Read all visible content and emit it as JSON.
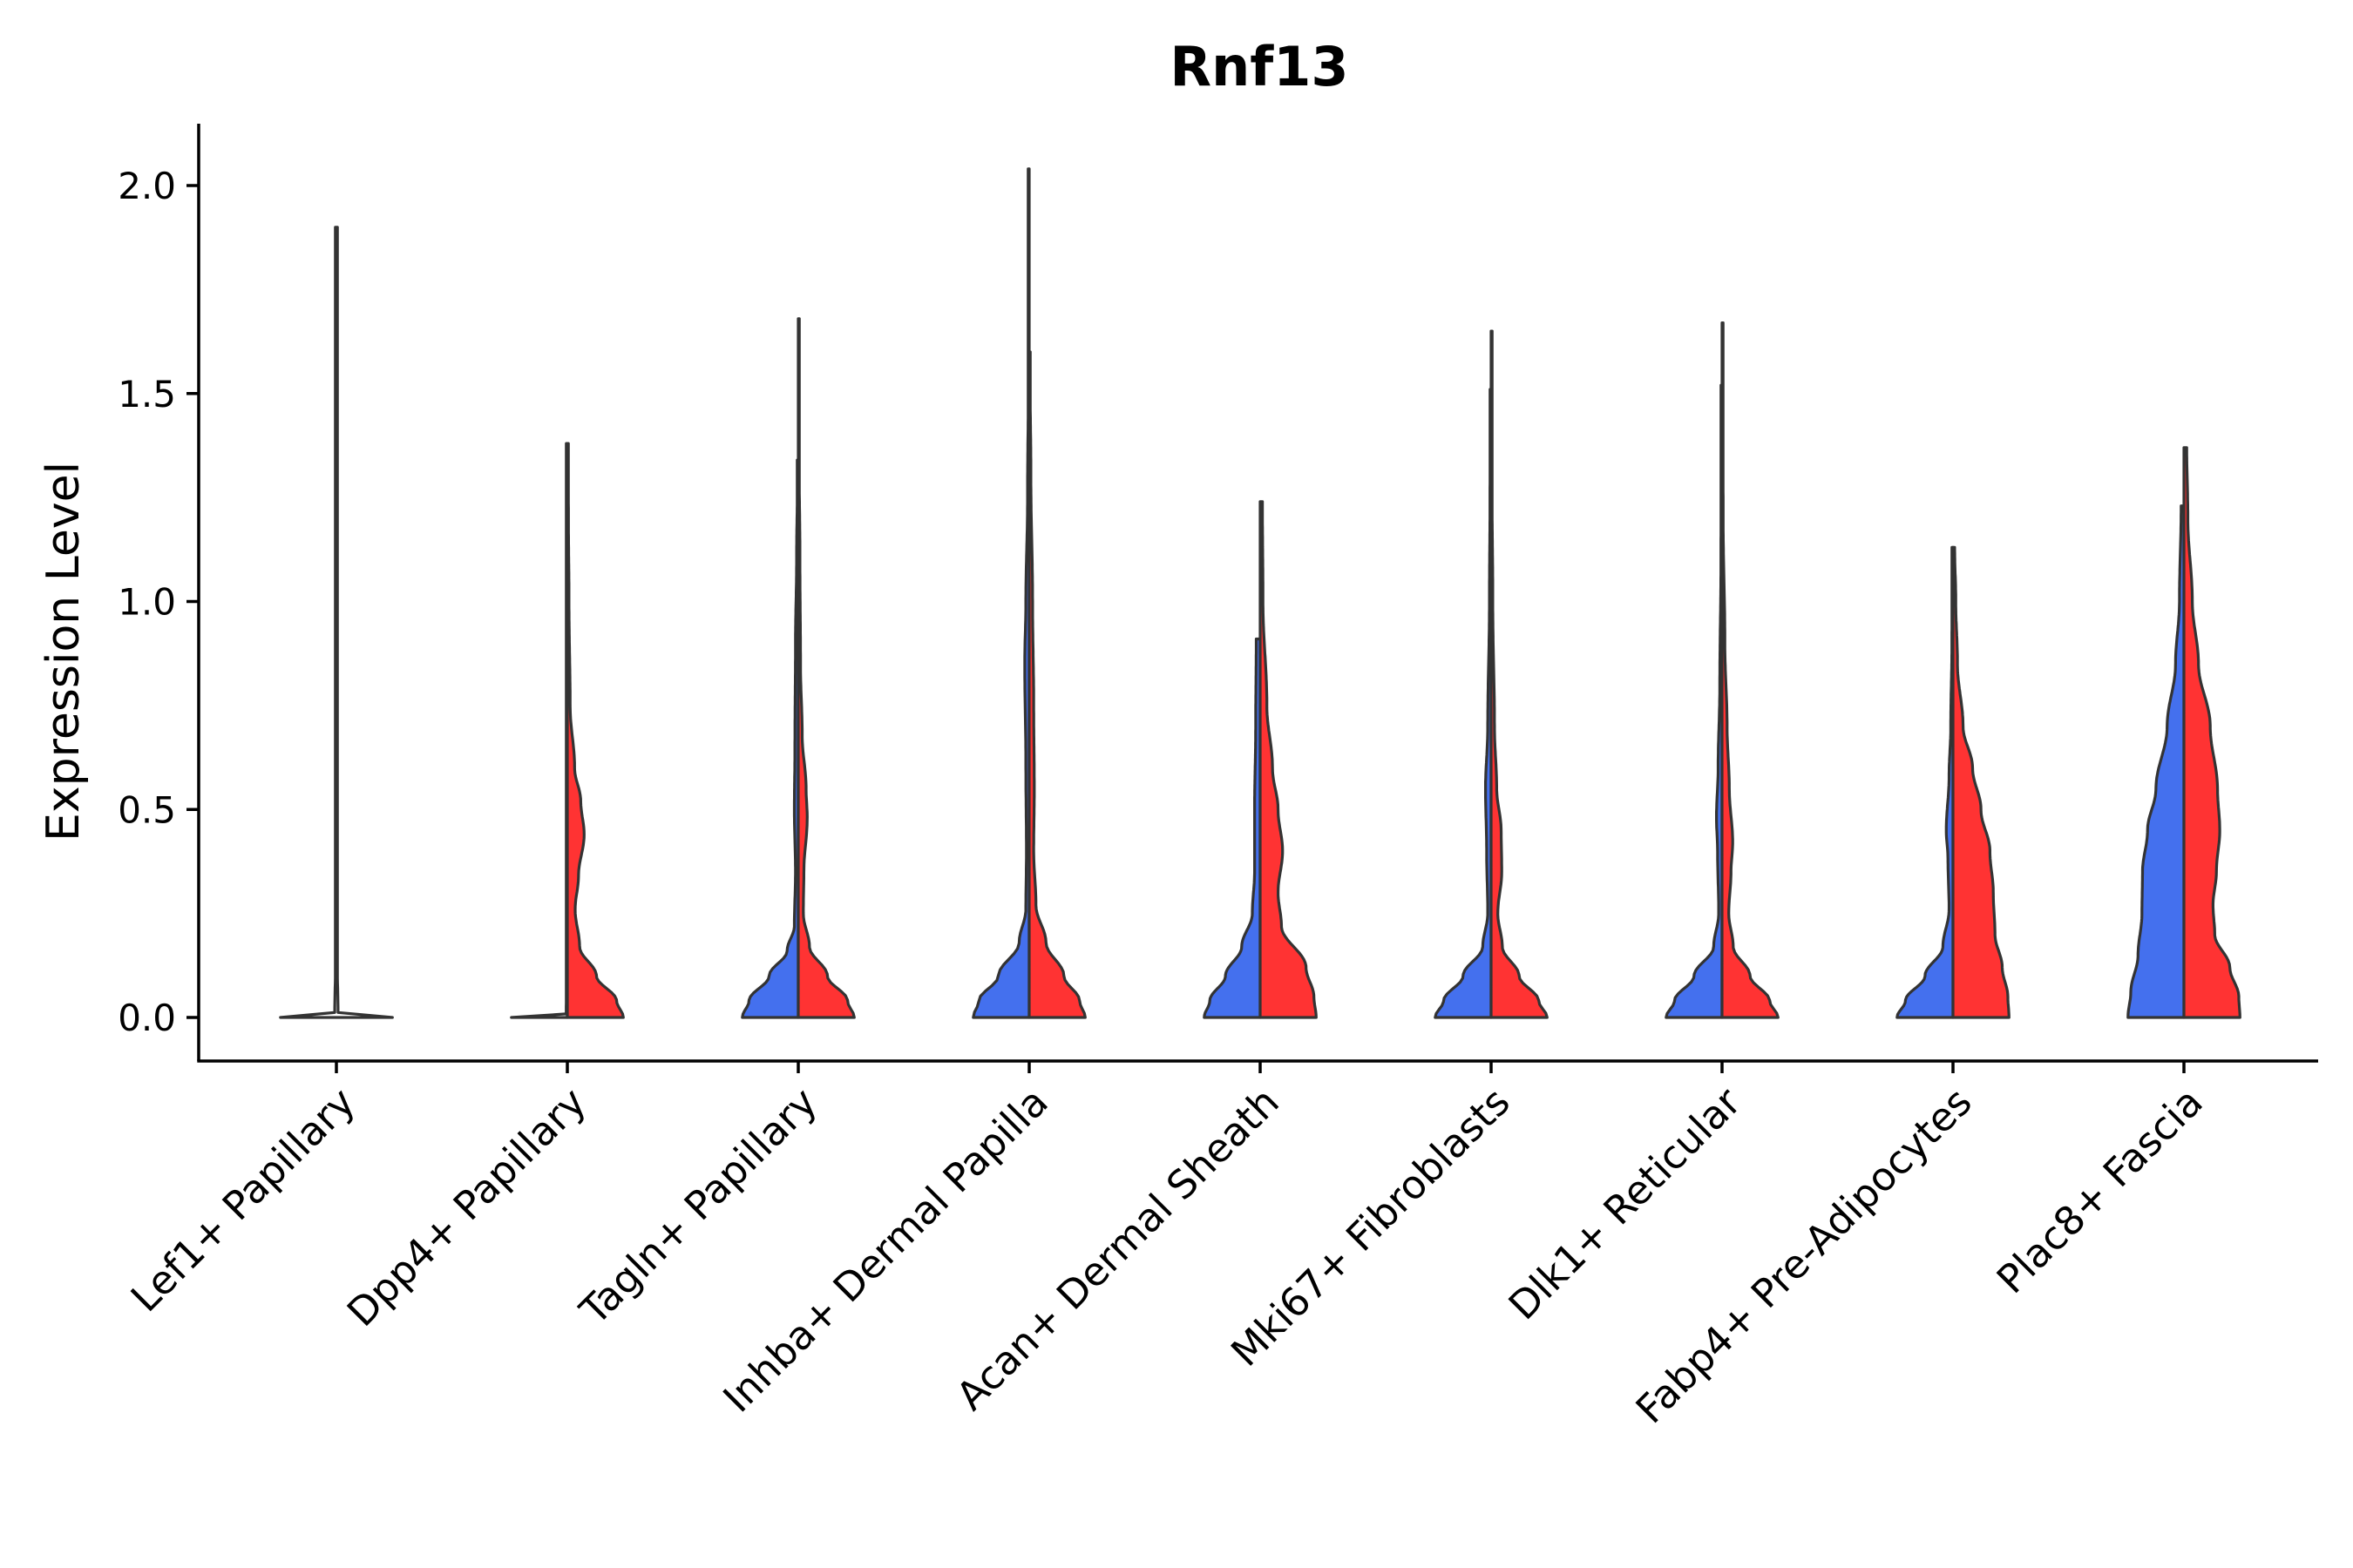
{
  "chart_data": {
    "type": "violin",
    "title": "Rnf13",
    "xlabel": "",
    "ylabel": "Expression Level",
    "ylim": [
      -0.1,
      2.15
    ],
    "yticks": [
      "0.0",
      "0.5",
      "1.0",
      "1.5",
      "2.0"
    ],
    "grid": false,
    "colors": {
      "blue": "#4470ee",
      "red": "#ff3333",
      "neutral": "#ffffff",
      "outline": "#333333"
    },
    "categories": [
      "Lef1+ Papillary",
      "Dpp4+ Papillary",
      "Tagln+ Papillary",
      "Inhba+ Dermal Papilla",
      "Acan+ Dermal Sheath",
      "Mki67+ Fibroblasts",
      "Dlk1+ Reticular",
      "Fabp4+ Pre-Adipocytes",
      "Plac8+ Fascia"
    ],
    "violins": [
      {
        "category": 0,
        "side": "single",
        "color": "neutral",
        "max": 1.9,
        "halfwidth": 0.46,
        "profile": [
          [
            0,
            1
          ],
          [
            0.003,
            0.4
          ],
          [
            0.006,
            0.03
          ],
          [
            0.2,
            0.003
          ],
          [
            1.9,
            0.003
          ]
        ]
      },
      {
        "category": 1,
        "side": "left",
        "color": "neutral",
        "max": 1.38,
        "halfwidth": 0.46,
        "profile": [
          [
            0,
            1
          ],
          [
            0.003,
            0.3
          ],
          [
            0.006,
            0.02
          ],
          [
            0.2,
            0.003
          ],
          [
            1.38,
            0.003
          ]
        ]
      },
      {
        "category": 1,
        "side": "right",
        "color": "red",
        "max": 1.38,
        "halfwidth": 0.46,
        "profile": [
          [
            0,
            1
          ],
          [
            0.04,
            0.88
          ],
          [
            0.1,
            0.52
          ],
          [
            0.17,
            0.22
          ],
          [
            0.26,
            0.14
          ],
          [
            0.34,
            0.2
          ],
          [
            0.44,
            0.3
          ],
          [
            0.52,
            0.24
          ],
          [
            0.6,
            0.13
          ],
          [
            0.75,
            0.05
          ],
          [
            1.0,
            0.03
          ],
          [
            1.2,
            0.02
          ],
          [
            1.38,
            0.01
          ]
        ]
      },
      {
        "category": 2,
        "side": "left",
        "color": "blue",
        "max": 1.34,
        "halfwidth": 0.46,
        "profile": [
          [
            0,
            1
          ],
          [
            0.04,
            0.88
          ],
          [
            0.1,
            0.52
          ],
          [
            0.16,
            0.2
          ],
          [
            0.22,
            0.07
          ],
          [
            0.35,
            0.05
          ],
          [
            0.5,
            0.07
          ],
          [
            0.65,
            0.06
          ],
          [
            0.9,
            0.05
          ],
          [
            1.1,
            0.03
          ],
          [
            1.34,
            0.01
          ]
        ]
      },
      {
        "category": 2,
        "side": "right",
        "color": "red",
        "max": 1.68,
        "halfwidth": 0.46,
        "profile": [
          [
            0,
            1
          ],
          [
            0.04,
            0.88
          ],
          [
            0.1,
            0.52
          ],
          [
            0.17,
            0.2
          ],
          [
            0.25,
            0.09
          ],
          [
            0.35,
            0.1
          ],
          [
            0.48,
            0.16
          ],
          [
            0.55,
            0.14
          ],
          [
            0.68,
            0.07
          ],
          [
            0.85,
            0.04
          ],
          [
            1.1,
            0.03
          ],
          [
            1.4,
            0.01
          ],
          [
            1.68,
            0.005
          ]
        ]
      },
      {
        "category": 3,
        "side": "left",
        "color": "blue",
        "max": 2.04,
        "halfwidth": 0.46,
        "profile": [
          [
            0,
            1
          ],
          [
            0.04,
            0.9
          ],
          [
            0.1,
            0.55
          ],
          [
            0.18,
            0.18
          ],
          [
            0.26,
            0.06
          ],
          [
            0.4,
            0.05
          ],
          [
            0.6,
            0.06
          ],
          [
            0.85,
            0.08
          ],
          [
            1.0,
            0.06
          ],
          [
            1.25,
            0.03
          ],
          [
            1.6,
            0.01
          ],
          [
            2.04,
            0.004
          ]
        ]
      },
      {
        "category": 3,
        "side": "right",
        "color": "red",
        "max": 1.6,
        "halfwidth": 0.46,
        "profile": [
          [
            0,
            1
          ],
          [
            0.04,
            0.9
          ],
          [
            0.1,
            0.62
          ],
          [
            0.18,
            0.3
          ],
          [
            0.27,
            0.12
          ],
          [
            0.4,
            0.08
          ],
          [
            0.55,
            0.09
          ],
          [
            0.75,
            0.08
          ],
          [
            1.0,
            0.06
          ],
          [
            1.3,
            0.03
          ],
          [
            1.6,
            0.01
          ]
        ]
      },
      {
        "category": 4,
        "side": "left",
        "color": "blue",
        "max": 0.91,
        "halfwidth": 0.46,
        "profile": [
          [
            0,
            1
          ],
          [
            0.04,
            0.9
          ],
          [
            0.1,
            0.62
          ],
          [
            0.17,
            0.33
          ],
          [
            0.25,
            0.14
          ],
          [
            0.35,
            0.1
          ],
          [
            0.5,
            0.1
          ],
          [
            0.7,
            0.08
          ],
          [
            0.91,
            0.07
          ]
        ]
      },
      {
        "category": 4,
        "side": "right",
        "color": "red",
        "max": 1.24,
        "halfwidth": 0.46,
        "profile": [
          [
            0,
            1
          ],
          [
            0.05,
            0.96
          ],
          [
            0.12,
            0.82
          ],
          [
            0.22,
            0.38
          ],
          [
            0.3,
            0.32
          ],
          [
            0.4,
            0.4
          ],
          [
            0.5,
            0.32
          ],
          [
            0.6,
            0.22
          ],
          [
            0.75,
            0.12
          ],
          [
            1.0,
            0.05
          ],
          [
            1.24,
            0.04
          ]
        ]
      },
      {
        "category": 5,
        "side": "left",
        "color": "blue",
        "max": 1.51,
        "halfwidth": 0.46,
        "profile": [
          [
            0,
            1
          ],
          [
            0.04,
            0.85
          ],
          [
            0.1,
            0.5
          ],
          [
            0.17,
            0.15
          ],
          [
            0.25,
            0.06
          ],
          [
            0.4,
            0.08
          ],
          [
            0.55,
            0.1
          ],
          [
            0.7,
            0.06
          ],
          [
            1.0,
            0.03
          ],
          [
            1.25,
            0.02
          ],
          [
            1.51,
            0.005
          ]
        ]
      },
      {
        "category": 5,
        "side": "right",
        "color": "red",
        "max": 1.65,
        "halfwidth": 0.46,
        "profile": [
          [
            0,
            1
          ],
          [
            0.04,
            0.85
          ],
          [
            0.1,
            0.5
          ],
          [
            0.17,
            0.2
          ],
          [
            0.25,
            0.12
          ],
          [
            0.35,
            0.19
          ],
          [
            0.45,
            0.18
          ],
          [
            0.55,
            0.1
          ],
          [
            0.7,
            0.06
          ],
          [
            1.0,
            0.03
          ],
          [
            1.3,
            0.015
          ],
          [
            1.65,
            0.005
          ]
        ]
      },
      {
        "category": 6,
        "side": "left",
        "color": "blue",
        "max": 1.52,
        "halfwidth": 0.46,
        "profile": [
          [
            0,
            1
          ],
          [
            0.04,
            0.85
          ],
          [
            0.1,
            0.5
          ],
          [
            0.17,
            0.15
          ],
          [
            0.25,
            0.06
          ],
          [
            0.4,
            0.08
          ],
          [
            0.48,
            0.1
          ],
          [
            0.6,
            0.07
          ],
          [
            0.8,
            0.04
          ],
          [
            1.1,
            0.02
          ],
          [
            1.52,
            0.005
          ]
        ]
      },
      {
        "category": 6,
        "side": "right",
        "color": "red",
        "max": 1.67,
        "halfwidth": 0.46,
        "profile": [
          [
            0,
            1
          ],
          [
            0.04,
            0.85
          ],
          [
            0.1,
            0.5
          ],
          [
            0.17,
            0.2
          ],
          [
            0.25,
            0.12
          ],
          [
            0.35,
            0.16
          ],
          [
            0.42,
            0.19
          ],
          [
            0.55,
            0.13
          ],
          [
            0.7,
            0.09
          ],
          [
            0.9,
            0.05
          ],
          [
            1.2,
            0.02
          ],
          [
            1.67,
            0.005
          ]
        ]
      },
      {
        "category": 7,
        "side": "left",
        "color": "blue",
        "max": 1.13,
        "halfwidth": 0.46,
        "profile": [
          [
            0,
            1
          ],
          [
            0.04,
            0.85
          ],
          [
            0.1,
            0.5
          ],
          [
            0.17,
            0.18
          ],
          [
            0.26,
            0.07
          ],
          [
            0.38,
            0.09
          ],
          [
            0.45,
            0.12
          ],
          [
            0.58,
            0.07
          ],
          [
            0.7,
            0.04
          ],
          [
            0.9,
            0.02
          ],
          [
            1.13,
            0.005
          ]
        ]
      },
      {
        "category": 7,
        "side": "right",
        "color": "red",
        "max": 1.13,
        "halfwidth": 0.46,
        "profile": [
          [
            0,
            1
          ],
          [
            0.05,
            0.98
          ],
          [
            0.12,
            0.88
          ],
          [
            0.2,
            0.75
          ],
          [
            0.3,
            0.72
          ],
          [
            0.4,
            0.66
          ],
          [
            0.5,
            0.5
          ],
          [
            0.6,
            0.35
          ],
          [
            0.7,
            0.18
          ],
          [
            0.85,
            0.08
          ],
          [
            1.0,
            0.05
          ],
          [
            1.13,
            0.03
          ]
        ]
      },
      {
        "category": 8,
        "side": "left",
        "color": "blue",
        "max": 1.23,
        "halfwidth": 0.46,
        "profile": [
          [
            0,
            1
          ],
          [
            0.06,
            0.95
          ],
          [
            0.15,
            0.82
          ],
          [
            0.25,
            0.75
          ],
          [
            0.35,
            0.74
          ],
          [
            0.45,
            0.65
          ],
          [
            0.55,
            0.5
          ],
          [
            0.7,
            0.3
          ],
          [
            0.85,
            0.15
          ],
          [
            1.0,
            0.08
          ],
          [
            1.23,
            0.05
          ]
        ]
      },
      {
        "category": 8,
        "side": "right",
        "color": "red",
        "max": 1.37,
        "halfwidth": 0.46,
        "profile": [
          [
            0,
            1
          ],
          [
            0.05,
            0.98
          ],
          [
            0.12,
            0.82
          ],
          [
            0.2,
            0.55
          ],
          [
            0.27,
            0.52
          ],
          [
            0.35,
            0.58
          ],
          [
            0.45,
            0.64
          ],
          [
            0.55,
            0.6
          ],
          [
            0.7,
            0.47
          ],
          [
            0.85,
            0.26
          ],
          [
            1.0,
            0.15
          ],
          [
            1.2,
            0.07
          ],
          [
            1.37,
            0.05
          ]
        ]
      }
    ]
  }
}
